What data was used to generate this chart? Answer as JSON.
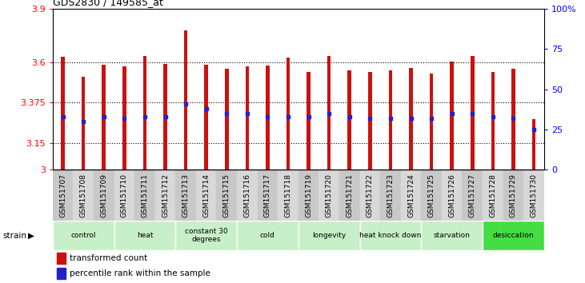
{
  "title": "GDS2830 / 149585_at",
  "samples": [
    "GSM151707",
    "GSM151708",
    "GSM151709",
    "GSM151710",
    "GSM151711",
    "GSM151712",
    "GSM151713",
    "GSM151714",
    "GSM151715",
    "GSM151716",
    "GSM151717",
    "GSM151718",
    "GSM151719",
    "GSM151720",
    "GSM151721",
    "GSM151722",
    "GSM151723",
    "GSM151724",
    "GSM151725",
    "GSM151726",
    "GSM151727",
    "GSM151728",
    "GSM151729",
    "GSM151730"
  ],
  "bar_heights": [
    3.63,
    3.52,
    3.585,
    3.575,
    3.635,
    3.59,
    3.78,
    3.585,
    3.565,
    3.575,
    3.58,
    3.625,
    3.545,
    3.635,
    3.555,
    3.548,
    3.555,
    3.57,
    3.535,
    3.605,
    3.635,
    3.545,
    3.565,
    3.285
  ],
  "percentile_ranks": [
    33,
    30,
    33,
    32,
    33,
    33,
    41,
    38,
    35,
    35,
    33,
    33,
    33,
    35,
    33,
    32,
    32,
    32,
    32,
    35,
    35,
    33,
    32,
    25
  ],
  "ylim_left": [
    3.0,
    3.9
  ],
  "ylim_right": [
    0,
    100
  ],
  "yticks_left": [
    3.0,
    3.15,
    3.375,
    3.6,
    3.9
  ],
  "ytick_labels_left": [
    "3",
    "3.15",
    "3.375",
    "3.6",
    "3.9"
  ],
  "yticks_right": [
    0,
    25,
    50,
    75,
    100
  ],
  "ytick_labels_right": [
    "0",
    "25",
    "50",
    "75",
    "100%"
  ],
  "bar_color": "#cc1111",
  "dot_color": "#2222cc",
  "bar_bottom": 3.0,
  "bar_width": 0.18,
  "groups": [
    {
      "label": "control",
      "start": 0,
      "end": 2,
      "color": "#c8f0c8"
    },
    {
      "label": "heat",
      "start": 3,
      "end": 5,
      "color": "#c8f0c8"
    },
    {
      "label": "constant 30\ndegrees",
      "start": 6,
      "end": 8,
      "color": "#c8f0c8"
    },
    {
      "label": "cold",
      "start": 9,
      "end": 11,
      "color": "#c8f0c8"
    },
    {
      "label": "longevity",
      "start": 12,
      "end": 14,
      "color": "#c8f0c8"
    },
    {
      "label": "heat knock down",
      "start": 15,
      "end": 17,
      "color": "#c8f0c8"
    },
    {
      "label": "starvation",
      "start": 18,
      "end": 20,
      "color": "#c8f0c8"
    },
    {
      "label": "desiccation",
      "start": 21,
      "end": 23,
      "color": "#44dd44"
    }
  ],
  "strain_label": "strain",
  "legend_items": [
    {
      "label": "transformed count",
      "color": "#cc1111"
    },
    {
      "label": "percentile rank within the sample",
      "color": "#2222cc"
    }
  ],
  "grid_yticks": [
    3.15,
    3.375,
    3.6
  ],
  "dot_size": 6
}
